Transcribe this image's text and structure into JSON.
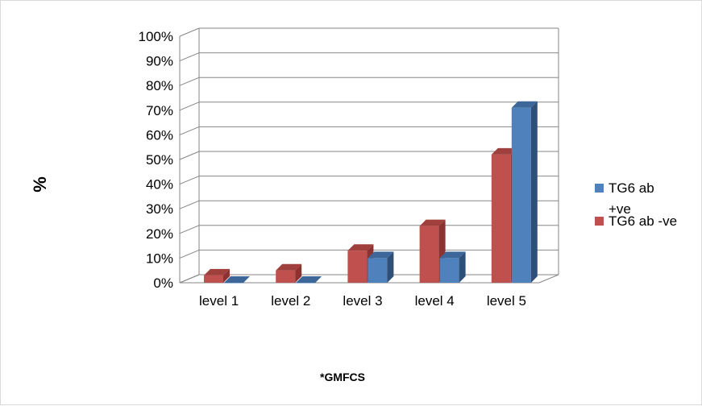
{
  "chart_data": {
    "type": "bar",
    "title": "",
    "xlabel": "*GMFCS",
    "ylabel": "%",
    "categories": [
      "level 1",
      "level 2",
      "level 3",
      "level 4",
      "level 5"
    ],
    "y_ticks": [
      "0%",
      "10%",
      "20%",
      "30%",
      "40%",
      "50%",
      "60%",
      "70%",
      "80%",
      "90%",
      "100%"
    ],
    "ylim": [
      0,
      100
    ],
    "grid": true,
    "legend_position": "right",
    "series": [
      {
        "name": "TG6 ab -ve",
        "values": [
          3,
          5,
          13,
          23,
          52
        ],
        "color": "#c0504d",
        "top_color": "#a0403d",
        "side_color": "#8a3330"
      },
      {
        "name": "TG6 ab +ve",
        "values": [
          0,
          0,
          10,
          10,
          71
        ],
        "color": "#4f81bd",
        "top_color": "#3d6799",
        "side_color": "#2e4f78"
      }
    ],
    "legend": {
      "entries": [
        {
          "series": "TG6 ab +ve",
          "lines": [
            "TG6 ab",
            "+ve"
          ]
        },
        {
          "series": "TG6 ab -ve",
          "lines": [
            "TG6 ab -ve"
          ]
        }
      ]
    }
  }
}
